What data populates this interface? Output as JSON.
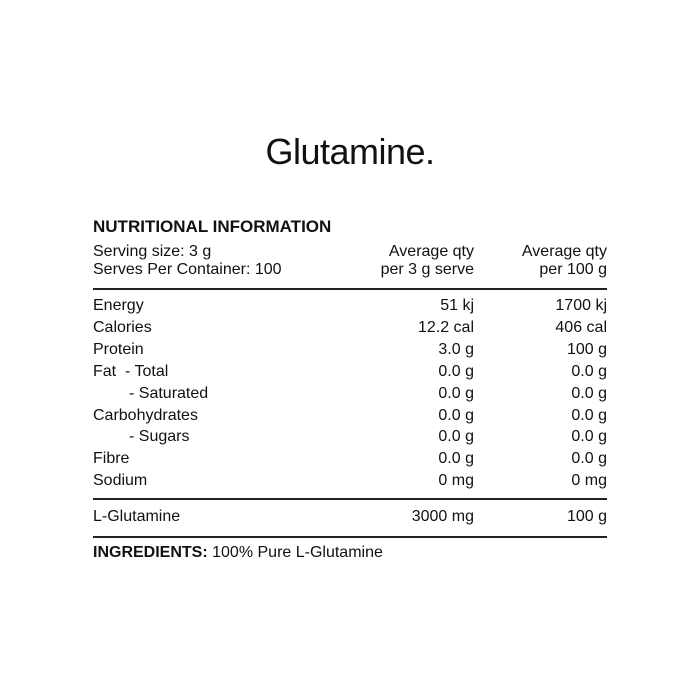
{
  "title": "Glutamine.",
  "panel": {
    "heading": "NUTRITIONAL INFORMATION",
    "serving_size": "Serving size: 3 g",
    "serves": "Serves Per Container: 100",
    "col_per_serve": [
      "Average qty",
      "per 3 g serve"
    ],
    "col_per_100g": [
      "Average qty",
      "per 100 g"
    ],
    "rows": [
      [
        "Energy",
        "51 kj",
        "1700 kj"
      ],
      [
        "Calories",
        "12.2 cal",
        "406 cal"
      ],
      [
        "Protein",
        "3.0 g",
        "100 g"
      ],
      [
        "Fat  - Total",
        "0.0 g",
        "0.0 g"
      ],
      [
        "- Saturated",
        "0.0 g",
        "0.0 g"
      ],
      [
        "Carbohydrates",
        "0.0 g",
        "0.0 g"
      ],
      [
        "- Sugars",
        "0.0 g",
        "0.0 g"
      ],
      [
        "Fibre",
        "0.0 g",
        "0.0 g"
      ],
      [
        "Sodium",
        "0 mg",
        "0 mg"
      ]
    ],
    "extra_row": [
      "L-Glutamine",
      "3000 mg",
      "100 g"
    ]
  },
  "ingredients": {
    "label": "INGREDIENTS:",
    "text": "100% Pure L-Glutamine"
  }
}
